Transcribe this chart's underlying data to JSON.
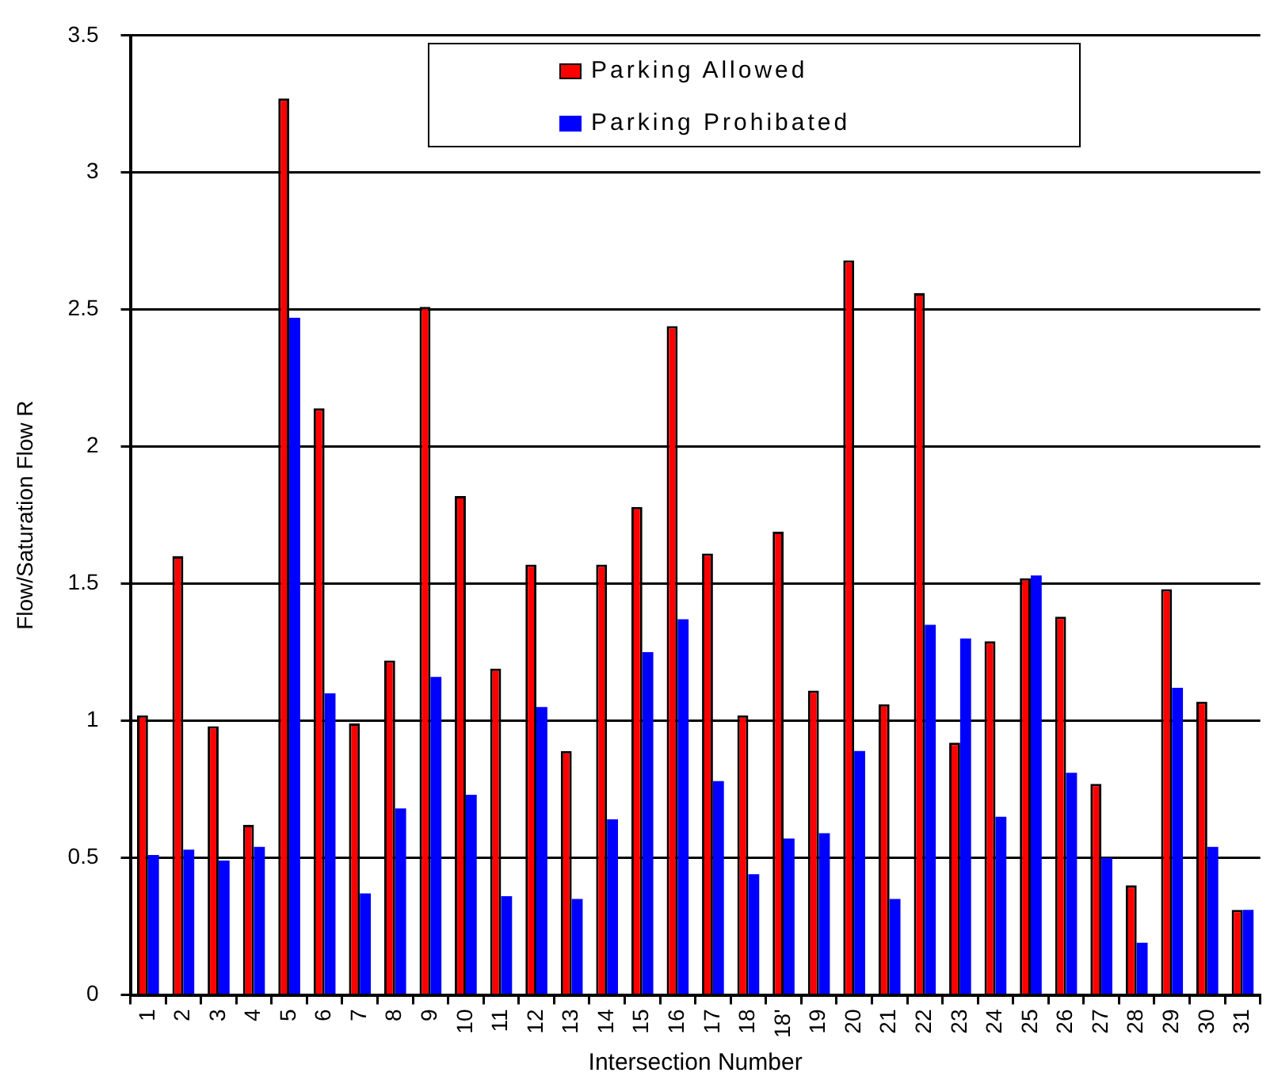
{
  "chart_data": {
    "type": "bar",
    "xlabel": "Intersection Number",
    "ylabel": "Flow/Saturation Flow R",
    "categories": [
      "1",
      "2",
      "3",
      "4",
      "5",
      "6",
      "7",
      "8",
      "9",
      "10",
      "11",
      "12",
      "13",
      "14",
      "15",
      "16",
      "17",
      "18",
      "18'",
      "19",
      "20",
      "21",
      "22",
      "23",
      "24",
      "25",
      "26",
      "27",
      "28",
      "29",
      "30",
      "31"
    ],
    "series": [
      {
        "name": "Parking Allowed",
        "color": "#ff0000",
        "values": [
          1.02,
          1.6,
          0.98,
          0.62,
          3.27,
          2.14,
          0.99,
          1.22,
          2.51,
          1.82,
          1.19,
          1.57,
          0.89,
          1.57,
          1.78,
          2.44,
          1.61,
          1.02,
          1.69,
          1.11,
          2.68,
          1.06,
          2.56,
          0.92,
          1.29,
          1.52,
          1.38,
          0.77,
          0.4,
          1.48,
          1.07,
          0.31
        ]
      },
      {
        "name": "Parking Prohibated",
        "color": "#0000ff",
        "values": [
          0.51,
          0.53,
          0.49,
          0.54,
          2.47,
          1.1,
          0.37,
          0.68,
          1.16,
          0.73,
          0.36,
          1.05,
          0.35,
          0.64,
          1.25,
          1.37,
          0.78,
          0.44,
          0.57,
          0.59,
          0.89,
          0.35,
          1.35,
          1.3,
          0.65,
          1.53,
          0.81,
          0.5,
          0.19,
          1.12,
          0.54,
          0.31
        ]
      }
    ],
    "ylim": [
      0,
      3.5
    ],
    "yticks": [
      0,
      0.5,
      1,
      1.5,
      2,
      2.5,
      3,
      3.5
    ],
    "grid": "y",
    "legend": "top"
  }
}
